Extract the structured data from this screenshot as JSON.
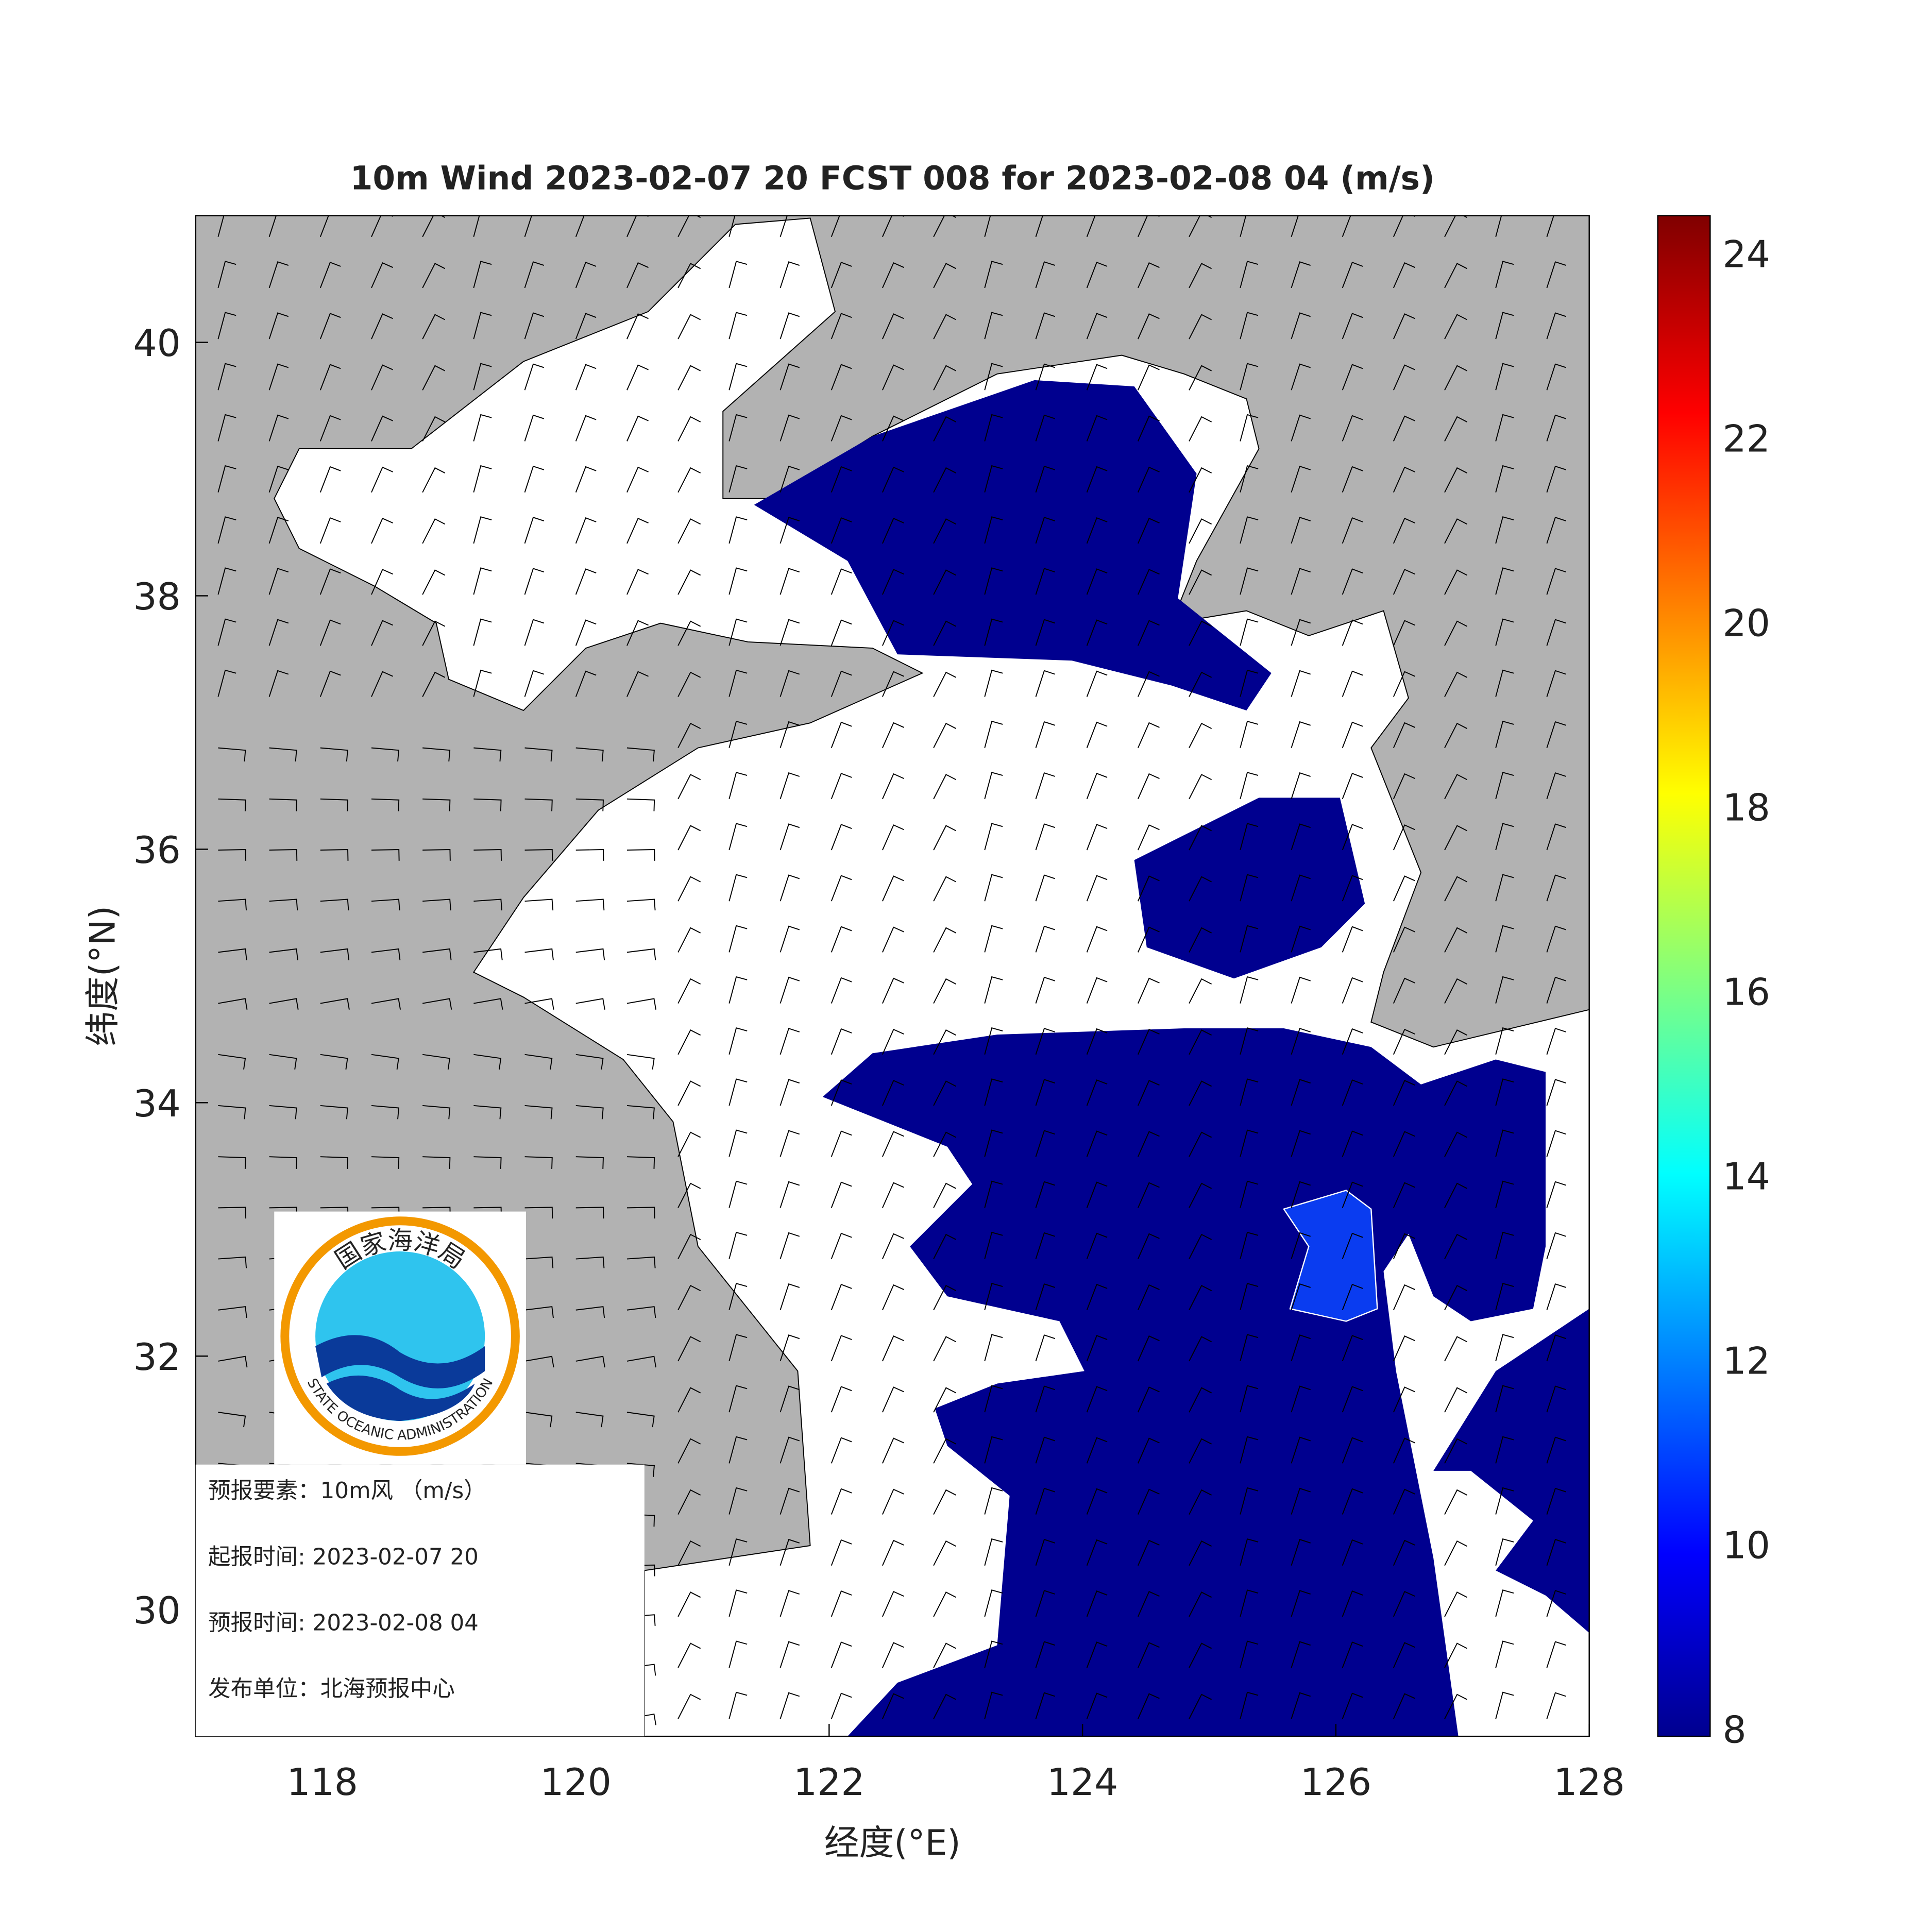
{
  "title": "10m Wind 2023-02-07 20 FCST 008 for 2023-02-08 04 (m/s)",
  "x_axis": {
    "label": "经度(°E)",
    "lim": [
      117,
      128
    ],
    "ticks": [
      118,
      120,
      122,
      124,
      126,
      128
    ]
  },
  "y_axis": {
    "label": "纬度(°N)",
    "lim": [
      29,
      41
    ],
    "ticks": [
      30,
      32,
      34,
      36,
      38,
      40
    ]
  },
  "colorbar": {
    "lim": [
      7.92,
      24.41
    ],
    "ticks": [
      8,
      10,
      12,
      14,
      16,
      18,
      20,
      22,
      24
    ]
  },
  "logo": {
    "name_cn": "国家海洋局",
    "name_en": "STATE OCEANIC ADMINISTRATION"
  },
  "info": [
    "预报要素：10m风 （m/s）",
    "起报时间: 2023-02-07 20",
    "预报时间: 2023-02-08 04",
    "发布单位：北海预报中心"
  ]
}
